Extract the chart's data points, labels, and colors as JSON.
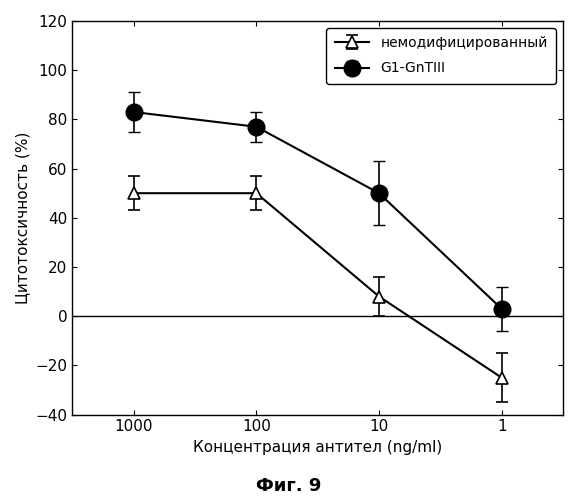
{
  "x_positions": [
    1,
    2,
    3,
    4
  ],
  "x_labels": [
    "1000",
    "100",
    "10",
    "1"
  ],
  "series1_name": "немодифицированный",
  "series2_name": "G1-GnTIII",
  "series1_y": [
    50,
    50,
    8,
    -25
  ],
  "series1_yerr": [
    7,
    7,
    8,
    10
  ],
  "series2_y": [
    83,
    77,
    50,
    3
  ],
  "series2_yerr": [
    8,
    6,
    13,
    9
  ],
  "series1_color": "black",
  "series2_color": "black",
  "series1_marker": "^",
  "series2_marker": "o",
  "series1_markersize": 9,
  "series2_markersize": 12,
  "series1_markerfacecolor": "white",
  "series2_markerfacecolor": "black",
  "ylabel": "Цитотоксичность (%)",
  "xlabel": "Концентрация антител (ng/ml)",
  "figure_label": "Фиг. 9",
  "ylim": [
    -40,
    120
  ],
  "yticks": [
    -40,
    -20,
    0,
    20,
    40,
    60,
    80,
    100,
    120
  ],
  "background_color": "white",
  "linewidth": 1.5
}
